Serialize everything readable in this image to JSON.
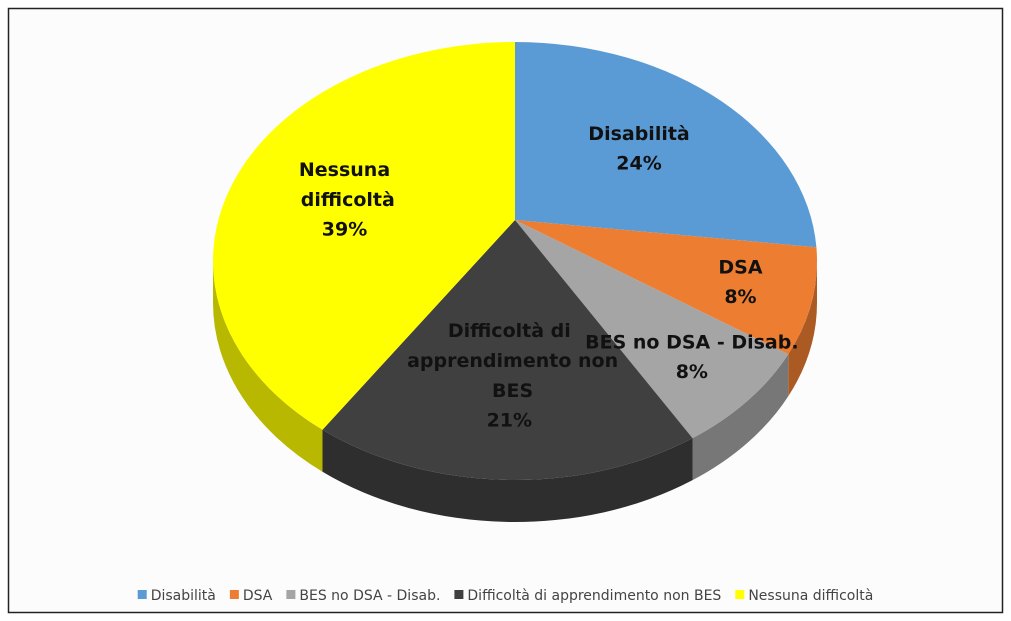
{
  "chart_data": {
    "type": "pie",
    "categories": [
      "Disabilità",
      "DSA",
      "BES no DSA - Disab.",
      "Difficoltà di apprendimento non BES",
      "Nessuna difficoltà"
    ],
    "values": [
      24,
      8,
      8,
      21,
      39
    ],
    "value_labels": [
      "24%",
      "8%",
      "8%",
      "21%",
      "39%"
    ],
    "colors": [
      "#5b9bd5",
      "#ed7d31",
      "#a5a5a5",
      "#404040",
      "#ffff00"
    ],
    "legend": "bottom"
  }
}
